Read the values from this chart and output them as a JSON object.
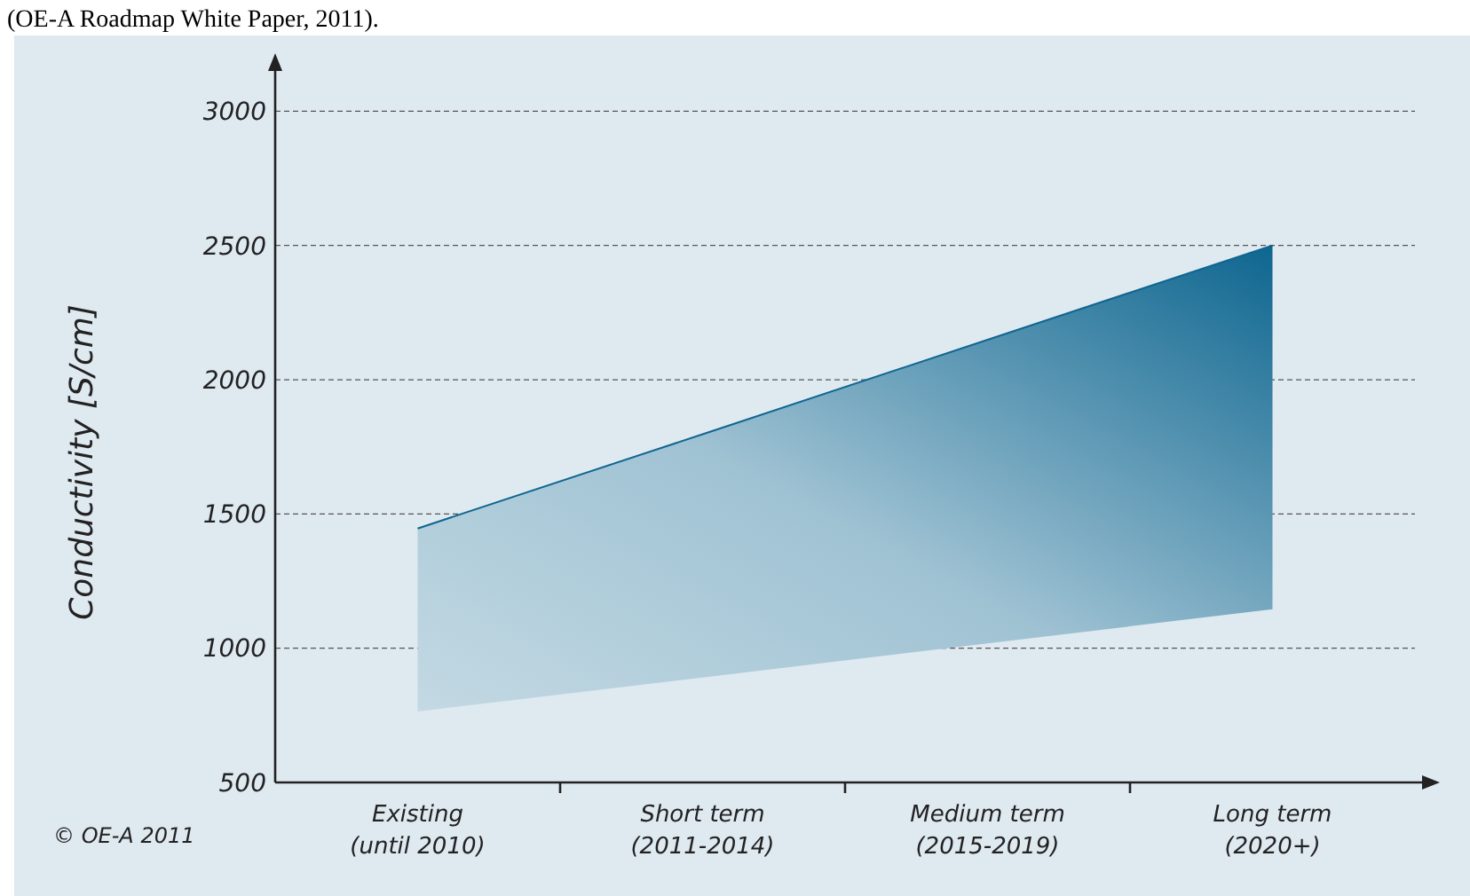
{
  "chart_data": {
    "type": "line",
    "ylabel": "Conductivity [S/cm]",
    "categories": [
      "Existing\n(until 2010)",
      "Short term\n(2011-2014)",
      "Medium term\n(2015-2019)",
      "Long term\n(2020+)"
    ],
    "series": [
      {
        "color": "#0e6690",
        "values": [
          1446,
          1797,
          2149,
          2500
        ],
        "lower": [
          764,
          891,
          1018,
          1145
        ],
        "upper": [
          1446,
          1797,
          2149,
          2500
        ]
      }
    ],
    "ylim": [
      500,
      3150
    ],
    "yticks": [
      500,
      1000,
      1500,
      2000,
      2500,
      3000
    ],
    "grid": "y",
    "annotations": [
      "(OE-A Roadmap White Paper, 2011).",
      "© OE-A 2011"
    ]
  }
}
